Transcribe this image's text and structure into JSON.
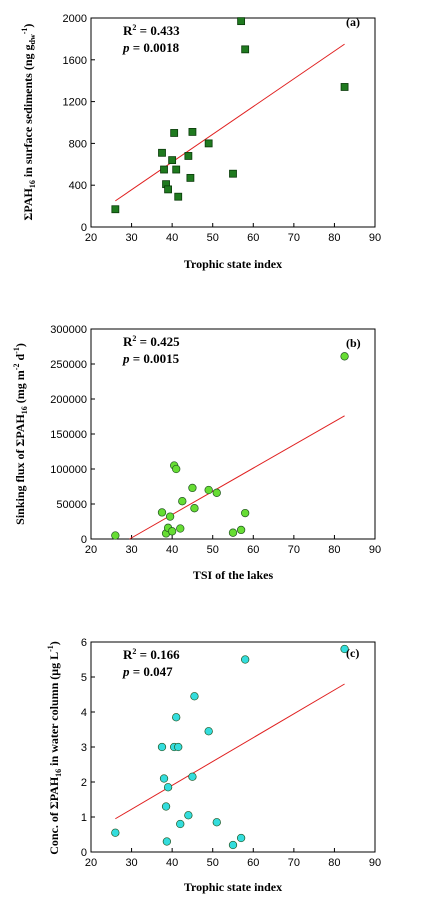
{
  "chart_data": [
    {
      "id": "a",
      "type": "scatter",
      "panel_label": "(a)",
      "xlabel": "Trophic state index",
      "ylabel": "ΣPAH16 in surface sediments (ng gdw-1)",
      "xlim": [
        20,
        90
      ],
      "ylim": [
        0,
        2000
      ],
      "xticks": [
        20,
        30,
        40,
        50,
        60,
        70,
        80,
        90
      ],
      "yticks": [
        0,
        400,
        800,
        1200,
        1600,
        2000
      ],
      "r2": "0.433",
      "p": "0.0018",
      "marker": "square",
      "marker_color": "#1f7a1f",
      "line_color": "#e02020",
      "fit": {
        "x": [
          26,
          82.5
        ],
        "y": [
          250,
          1750
        ]
      },
      "points": [
        [
          26,
          170
        ],
        [
          37.5,
          710
        ],
        [
          38,
          550
        ],
        [
          38.5,
          410
        ],
        [
          39,
          360
        ],
        [
          40,
          640
        ],
        [
          40.5,
          900
        ],
        [
          41,
          550
        ],
        [
          41.5,
          290
        ],
        [
          44,
          680
        ],
        [
          44.5,
          470
        ],
        [
          45,
          910
        ],
        [
          49,
          800
        ],
        [
          55,
          510
        ],
        [
          57,
          1970
        ],
        [
          58,
          1700
        ],
        [
          82.5,
          1340
        ]
      ]
    },
    {
      "id": "b",
      "type": "scatter",
      "panel_label": "(b)",
      "xlabel": "TSI of the lakes",
      "ylabel": "Sinking flux of ΣPAH16 (mg m-2 d-1)",
      "xlim": [
        20,
        90
      ],
      "ylim": [
        0,
        300000
      ],
      "xticks": [
        20,
        30,
        40,
        50,
        60,
        70,
        80,
        90
      ],
      "yticks": [
        0,
        50000,
        100000,
        150000,
        200000,
        250000,
        300000
      ],
      "r2": "0.425",
      "p": "0.0015",
      "marker": "circle",
      "marker_color": "#66dd33",
      "line_color": "#e02020",
      "fit": {
        "x": [
          29.5,
          82.5
        ],
        "y": [
          0,
          176000
        ]
      },
      "points": [
        [
          26,
          5000
        ],
        [
          37.5,
          38000
        ],
        [
          38.5,
          8000
        ],
        [
          39,
          16000
        ],
        [
          39.5,
          32000
        ],
        [
          40,
          11000
        ],
        [
          40.5,
          105000
        ],
        [
          41,
          100000
        ],
        [
          42,
          15000
        ],
        [
          42.5,
          54000
        ],
        [
          45,
          73000
        ],
        [
          45.5,
          44000
        ],
        [
          49,
          70000
        ],
        [
          51,
          66000
        ],
        [
          55,
          9000
        ],
        [
          57,
          13000
        ],
        [
          58,
          37000
        ],
        [
          82.5,
          261000
        ]
      ]
    },
    {
      "id": "c",
      "type": "scatter",
      "panel_label": "(c)",
      "xlabel": "Trophic state index",
      "ylabel": "Conc. of ΣPAH16 in water column (μg L-1)",
      "xlim": [
        20,
        90
      ],
      "ylim": [
        0,
        6
      ],
      "xticks": [
        20,
        30,
        40,
        50,
        60,
        70,
        80,
        90
      ],
      "yticks": [
        0,
        1,
        2,
        3,
        4,
        5,
        6
      ],
      "r2": "0.166",
      "p": "0.047",
      "marker": "circle",
      "marker_color": "#33dddd",
      "line_color": "#e02020",
      "fit": {
        "x": [
          26,
          82.5
        ],
        "y": [
          0.95,
          4.8
        ]
      },
      "points": [
        [
          26,
          0.55
        ],
        [
          37.5,
          3.0
        ],
        [
          38,
          2.1
        ],
        [
          38.5,
          1.3
        ],
        [
          38.7,
          0.3
        ],
        [
          39,
          1.85
        ],
        [
          40.5,
          3.0
        ],
        [
          41,
          3.85
        ],
        [
          41.5,
          3.0
        ],
        [
          42,
          0.8
        ],
        [
          44,
          1.05
        ],
        [
          45,
          2.15
        ],
        [
          45.5,
          4.45
        ],
        [
          49,
          3.45
        ],
        [
          51,
          0.85
        ],
        [
          55,
          0.2
        ],
        [
          57,
          0.4
        ],
        [
          58,
          5.5
        ],
        [
          82.5,
          5.8
        ]
      ]
    }
  ]
}
